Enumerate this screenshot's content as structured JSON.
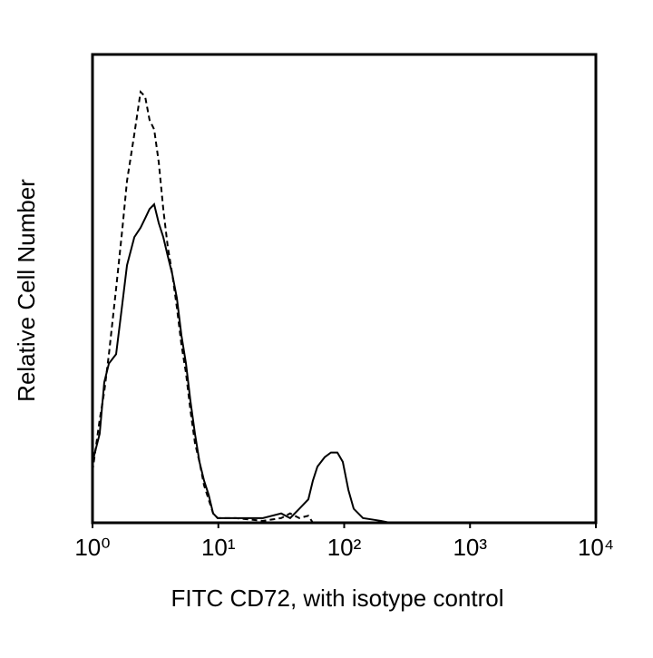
{
  "chart_data": {
    "type": "line",
    "xlabel": "FITC CD72, with isotype control",
    "ylabel": "Relative Cell Number",
    "xscale": "log",
    "xlim": [
      1,
      10000
    ],
    "xticks": [
      {
        "value": 1,
        "label": "10⁰"
      },
      {
        "value": 10,
        "label": "10¹"
      },
      {
        "value": 100,
        "label": "10²"
      },
      {
        "value": 1000,
        "label": "10³"
      },
      {
        "value": 10000,
        "label": "10⁴"
      }
    ],
    "ylim": [
      0,
      100
    ],
    "x": [
      1,
      1.14,
      1.24,
      1.35,
      1.54,
      1.73,
      1.88,
      2.15,
      2.41,
      2.62,
      2.84,
      3.09,
      3.36,
      3.65,
      3.96,
      4.31,
      4.68,
      5.09,
      5.53,
      6.0,
      6.52,
      7.08,
      7.7,
      8.37,
      9.09,
      9.88,
      13.8,
      22.6,
      31.6,
      37.2,
      44,
      51.9,
      56.4,
      61.3,
      70,
      78.5,
      88.3,
      97.5,
      108,
      119,
      141,
      196,
      231
    ],
    "series": [
      {
        "color": "#000000",
        "dashed": false,
        "values": [
          13,
          19,
          30,
          34,
          36,
          47,
          55,
          61,
          63,
          65,
          67,
          68,
          64,
          61,
          57,
          53,
          48,
          40,
          34,
          26,
          19,
          13,
          9,
          6,
          2,
          1,
          1,
          1,
          2,
          1,
          3,
          5,
          9,
          12,
          14,
          15,
          15,
          13,
          7,
          3,
          1,
          0.4,
          0
        ]
      },
      {
        "color": "#000000",
        "dashed": true,
        "values": [
          11,
          22,
          28,
          36,
          50,
          63,
          73,
          83,
          92,
          91,
          86,
          84,
          77,
          67,
          59,
          53,
          46,
          38,
          32,
          24,
          17,
          13,
          8,
          5,
          2,
          1,
          1,
          0.4,
          1,
          2,
          1,
          1.5,
          0,
          0,
          0,
          0,
          0,
          0,
          0,
          0,
          0,
          0,
          0
        ]
      }
    ]
  }
}
